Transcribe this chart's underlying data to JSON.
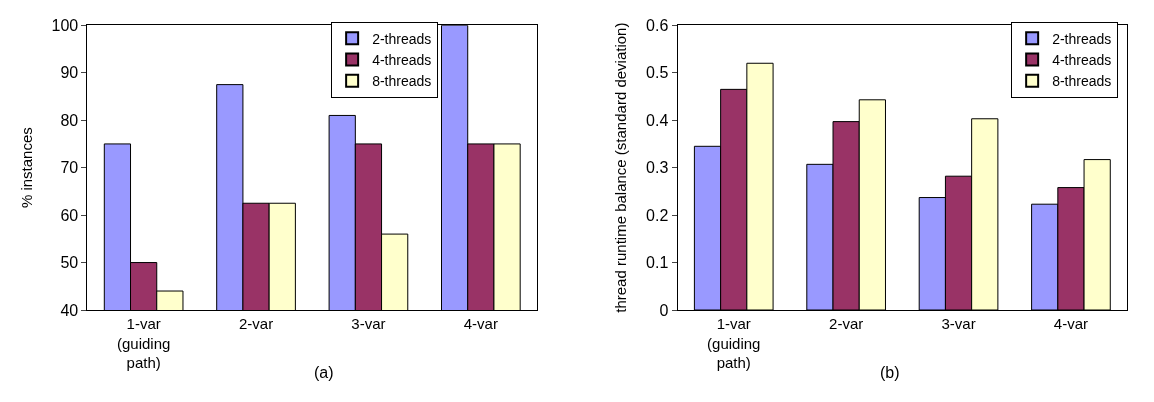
{
  "chart_data": [
    {
      "type": "bar",
      "ylabel": "% instances",
      "annotations": [
        "(a)"
      ],
      "categories": [
        "1-var\n(guiding\npath)",
        "2-var",
        "3-var",
        "4-var"
      ],
      "ylim": [
        40,
        100
      ],
      "yticks": [
        40,
        50,
        60,
        70,
        80,
        90,
        100
      ],
      "grid": false,
      "legend": "top right",
      "series": [
        {
          "name": "2-threads",
          "color": "#9999ff",
          "values": [
            75,
            87.5,
            81,
            100
          ]
        },
        {
          "name": "4-threads",
          "color": "#993366",
          "values": [
            50,
            62.5,
            75,
            75
          ]
        },
        {
          "name": "8-threads",
          "color": "#ffffcc",
          "values": [
            44,
            62.5,
            56,
            75
          ]
        }
      ]
    },
    {
      "type": "bar",
      "ylabel": "thread runtime balance (standard deviation)",
      "annotations": [
        "(b)"
      ],
      "categories": [
        "1-var\n(guiding\npath)",
        "2-var",
        "3-var",
        "4-var"
      ],
      "ylim": [
        0,
        0.6
      ],
      "yticks": [
        0,
        0.1,
        0.2,
        0.3,
        0.4,
        0.5,
        0.6
      ],
      "grid": false,
      "legend": "top right",
      "series": [
        {
          "name": "2-threads",
          "color": "#9999ff",
          "values": [
            0.345,
            0.307,
            0.237,
            0.223
          ]
        },
        {
          "name": "4-threads",
          "color": "#993366",
          "values": [
            0.465,
            0.397,
            0.282,
            0.258
          ]
        },
        {
          "name": "8-threads",
          "color": "#ffffcc",
          "values": [
            0.52,
            0.443,
            0.403,
            0.317
          ]
        }
      ]
    }
  ]
}
